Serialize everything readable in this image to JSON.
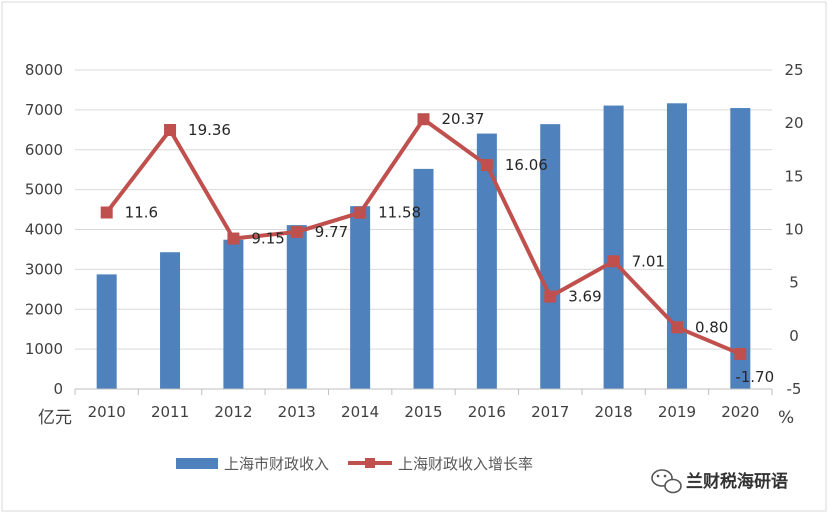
{
  "chart_data": {
    "type": "bar+line",
    "categories": [
      "2010",
      "2011",
      "2012",
      "2013",
      "2014",
      "2015",
      "2016",
      "2017",
      "2018",
      "2019",
      "2020"
    ],
    "series": [
      {
        "name": "上海市财政收入",
        "type": "bar",
        "axis": "left",
        "color": "#4F81BD",
        "values": [
          2874,
          3430,
          3744,
          4110,
          4586,
          5520,
          6406,
          6642,
          7108,
          7165,
          7046
        ]
      },
      {
        "name": "上海财政收入增长率",
        "type": "line",
        "axis": "right",
        "color": "#C0504D",
        "values": [
          11.6,
          19.36,
          9.15,
          9.77,
          11.58,
          20.37,
          16.06,
          3.69,
          7.01,
          0.8,
          -1.7
        ],
        "labels": [
          "11.6",
          "19.36",
          "9.15",
          "9.77",
          "11.58",
          "20.37",
          "16.06",
          "3.69",
          "7.01",
          "0.80",
          "-1.70"
        ]
      }
    ],
    "y_left": {
      "unit": "亿元",
      "ylim": [
        0,
        8000
      ],
      "ticks": [
        "0",
        "1000",
        "2000",
        "3000",
        "4000",
        "5000",
        "6000",
        "7000",
        "8000"
      ]
    },
    "y_right": {
      "unit": "%",
      "ylim": [
        -5,
        25
      ],
      "ticks": [
        "-5",
        "0",
        "5",
        "10",
        "15",
        "20",
        "25"
      ]
    },
    "grid": true,
    "legend_position": "bottom"
  },
  "watermark": {
    "text": "兰财税海研语",
    "icon": "wechat-icon"
  }
}
